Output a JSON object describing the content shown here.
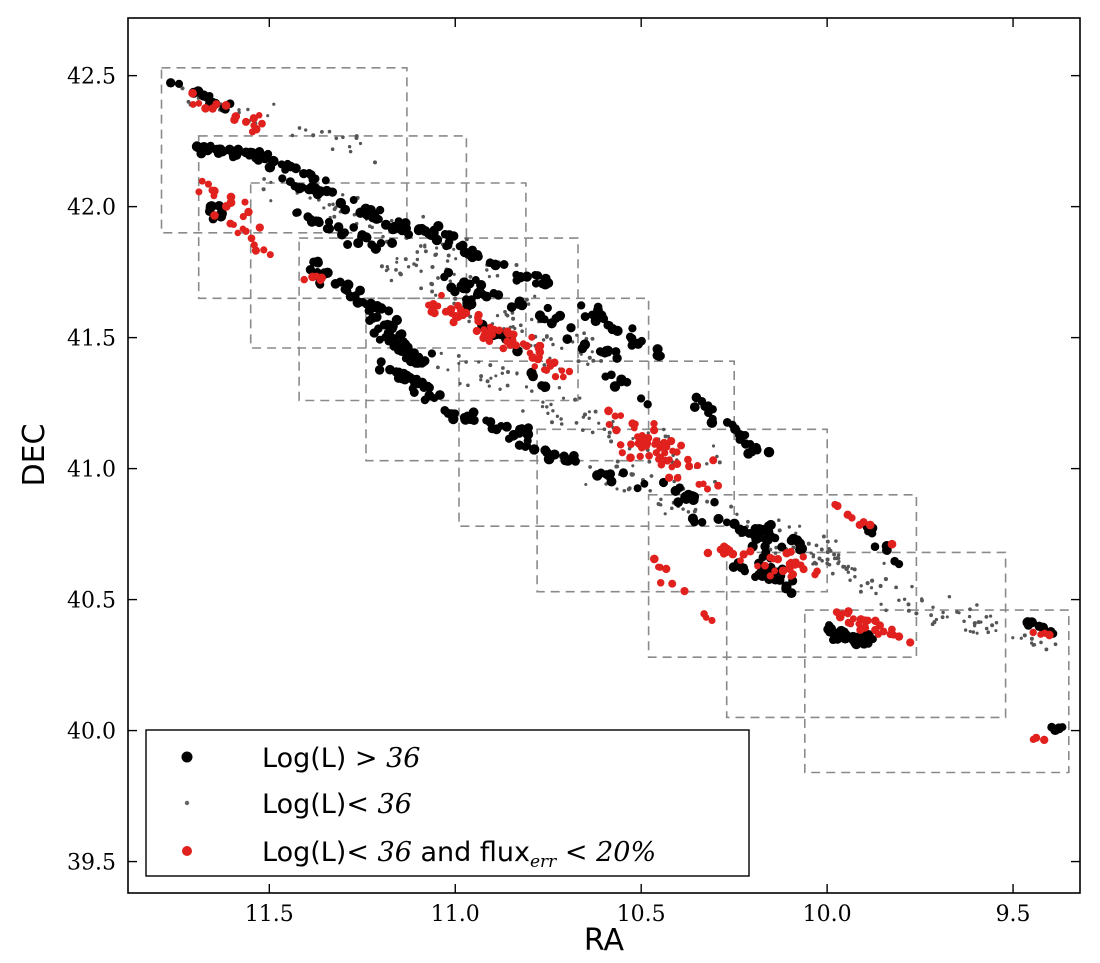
{
  "chart_data": {
    "type": "scatter",
    "xlabel": "RA",
    "ylabel": "DEC",
    "xlim": [
      11.88,
      9.32
    ],
    "ylim": [
      39.38,
      42.72
    ],
    "x_inverted": true,
    "grid": false,
    "x_ticks": [
      11.5,
      11.0,
      10.5,
      10.0,
      9.5
    ],
    "x_tick_labels": [
      "11.5",
      "11.0",
      "10.5",
      "10.0",
      "9.5"
    ],
    "y_ticks": [
      39.5,
      40.0,
      40.5,
      41.0,
      41.5,
      42.0,
      42.5
    ],
    "y_tick_labels": [
      "39.5",
      "40.0",
      "40.5",
      "41.0",
      "41.5",
      "42.0",
      "42.5"
    ],
    "legend_position": "bottom-left",
    "legend": [
      {
        "color": "#000000",
        "marker": "large-dot",
        "prefix": "Log(L)",
        "math": " > 36",
        "suffix": ""
      },
      {
        "color": "#666666",
        "marker": "small-dot",
        "prefix": "Log(L)",
        "math": "< 36",
        "suffix": ""
      },
      {
        "color": "#e0211d",
        "marker": "medium-dot",
        "prefix": "Log(L)",
        "math": "< 36",
        "suffix": " and flux",
        "sub": "err",
        "tail": " < 20%"
      }
    ],
    "fields": [
      {
        "ra_max": 11.79,
        "ra_min": 11.13,
        "dec_min": 41.9,
        "dec_max": 42.53
      },
      {
        "ra_max": 11.69,
        "ra_min": 10.97,
        "dec_min": 41.65,
        "dec_max": 42.27
      },
      {
        "ra_max": 11.55,
        "ra_min": 10.81,
        "dec_min": 41.46,
        "dec_max": 42.09
      },
      {
        "ra_max": 11.42,
        "ra_min": 10.67,
        "dec_min": 41.26,
        "dec_max": 41.88
      },
      {
        "ra_max": 11.24,
        "ra_min": 10.48,
        "dec_min": 41.03,
        "dec_max": 41.65
      },
      {
        "ra_max": 10.99,
        "ra_min": 10.25,
        "dec_min": 40.78,
        "dec_max": 41.41
      },
      {
        "ra_max": 10.78,
        "ra_min": 10.0,
        "dec_min": 40.53,
        "dec_max": 41.15
      },
      {
        "ra_max": 10.48,
        "ra_min": 9.76,
        "dec_min": 40.28,
        "dec_max": 40.9
      },
      {
        "ra_max": 10.27,
        "ra_min": 9.52,
        "dec_min": 40.05,
        "dec_max": 40.68
      },
      {
        "ra_max": 10.06,
        "ra_min": 9.35,
        "dec_min": 39.84,
        "dec_max": 40.46
      }
    ],
    "series": [
      {
        "name": "Log(L) > 36",
        "color": "#000000",
        "marker_size": 4.6,
        "density": 320,
        "segments": [
          {
            "x": [
              11.76,
              11.62
            ],
            "y": [
              42.47,
              42.38
            ],
            "w": 0.25,
            "n": 14
          },
          {
            "x": [
              11.72,
              11.52
            ],
            "y": [
              42.22,
              42.2
            ],
            "w": 0.25,
            "n": 26
          },
          {
            "x": [
              11.55,
              11.36
            ],
            "y": [
              42.2,
              42.1
            ],
            "w": 0.2,
            "n": 22
          },
          {
            "x": [
              11.7,
              11.62
            ],
            "y": [
              42.02,
              41.96
            ],
            "w": 0.3,
            "n": 10
          },
          {
            "x": [
              11.45,
              11.05
            ],
            "y": [
              42.1,
              41.88
            ],
            "w": 0.35,
            "n": 34
          },
          {
            "x": [
              11.17,
              10.98
            ],
            "y": [
              41.92,
              41.9
            ],
            "w": 0.25,
            "n": 18
          },
          {
            "x": [
              11.05,
              10.75
            ],
            "y": [
              41.88,
              41.7
            ],
            "w": 0.3,
            "n": 28
          },
          {
            "x": [
              11.42,
              11.18
            ],
            "y": [
              41.98,
              41.84
            ],
            "w": 0.3,
            "n": 26
          },
          {
            "x": [
              11.05,
              10.65
            ],
            "y": [
              41.75,
              41.52
            ],
            "w": 0.3,
            "n": 26
          },
          {
            "x": [
              10.65,
              10.45
            ],
            "y": [
              41.6,
              41.43
            ],
            "w": 0.25,
            "n": 24
          },
          {
            "x": [
              10.7,
              10.55
            ],
            "y": [
              41.5,
              41.43
            ],
            "w": 0.25,
            "n": 10
          },
          {
            "x": [
              11.38,
              11.18
            ],
            "y": [
              41.78,
              41.57
            ],
            "w": 0.35,
            "n": 36
          },
          {
            "x": [
              11.22,
              11.08
            ],
            "y": [
              41.56,
              41.38
            ],
            "w": 0.35,
            "n": 44
          },
          {
            "x": [
              11.18,
              11.05
            ],
            "y": [
              41.4,
              41.27
            ],
            "w": 0.3,
            "n": 28
          },
          {
            "x": [
              11.0,
              10.75
            ],
            "y": [
              41.7,
              41.3
            ],
            "w": 0.3,
            "n": 20
          },
          {
            "x": [
              11.02,
              10.8
            ],
            "y": [
              41.22,
              41.12
            ],
            "w": 0.3,
            "n": 28
          },
          {
            "x": [
              10.85,
              10.65
            ],
            "y": [
              41.1,
              41.02
            ],
            "w": 0.25,
            "n": 16
          },
          {
            "x": [
              10.6,
              10.3
            ],
            "y": [
              40.98,
              40.88
            ],
            "w": 0.3,
            "n": 20
          },
          {
            "x": [
              10.4,
              10.05
            ],
            "y": [
              40.85,
              40.7
            ],
            "w": 0.35,
            "n": 24
          },
          {
            "x": [
              10.35,
              10.18
            ],
            "y": [
              41.25,
              41.07
            ],
            "w": 0.3,
            "n": 24
          },
          {
            "x": [
              10.18,
              10.12
            ],
            "y": [
              40.78,
              40.52
            ],
            "w": 0.45,
            "n": 24
          },
          {
            "x": [
              10.25,
              10.1
            ],
            "y": [
              40.63,
              40.58
            ],
            "w": 0.3,
            "n": 18
          },
          {
            "x": [
              10.0,
              9.88
            ],
            "y": [
              40.38,
              40.33
            ],
            "w": 0.35,
            "n": 34
          },
          {
            "x": [
              9.9,
              9.78
            ],
            "y": [
              40.78,
              40.6
            ],
            "w": 0.3,
            "n": 10
          },
          {
            "x": [
              10.58,
              10.45
            ],
            "y": [
              41.35,
              41.22
            ],
            "w": 0.25,
            "n": 8
          },
          {
            "x": [
              9.46,
              9.4
            ],
            "y": [
              40.41,
              40.38
            ],
            "w": 0.2,
            "n": 7
          },
          {
            "x": [
              9.42,
              9.37
            ],
            "y": [
              40.02,
              40.01
            ],
            "w": 0.15,
            "n": 5
          }
        ]
      },
      {
        "name": "Log(L)< 36",
        "color": "#555555",
        "marker_size": 1.8,
        "density": 260,
        "segments": [
          {
            "x": [
              11.75,
              11.2
            ],
            "y": [
              42.45,
              42.2
            ],
            "w": 0.6,
            "n": 30
          },
          {
            "x": [
              11.5,
              10.9
            ],
            "y": [
              42.1,
              41.75
            ],
            "w": 0.7,
            "n": 60
          },
          {
            "x": [
              11.2,
              10.6
            ],
            "y": [
              41.8,
              41.4
            ],
            "w": 0.8,
            "n": 80
          },
          {
            "x": [
              11.0,
              10.3
            ],
            "y": [
              41.4,
              41.0
            ],
            "w": 0.8,
            "n": 90
          },
          {
            "x": [
              10.6,
              9.9
            ],
            "y": [
              41.0,
              40.6
            ],
            "w": 0.8,
            "n": 90
          },
          {
            "x": [
              10.1,
              9.55
            ],
            "y": [
              40.7,
              40.35
            ],
            "w": 0.7,
            "n": 60
          },
          {
            "x": [
              9.7,
              9.4
            ],
            "y": [
              40.45,
              40.33
            ],
            "w": 0.5,
            "n": 20
          }
        ]
      },
      {
        "name": "Log(L)< 36 and flux_err < 20%",
        "color": "#e0211d",
        "marker_size": 3.8,
        "density": 280,
        "segments": [
          {
            "x": [
              11.76,
              11.5
            ],
            "y": [
              42.43,
              42.3
            ],
            "w": 0.4,
            "n": 18
          },
          {
            "x": [
              11.68,
              11.5
            ],
            "y": [
              42.12,
              41.85
            ],
            "w": 0.45,
            "n": 20
          },
          {
            "x": [
              11.6,
              11.35
            ],
            "y": [
              41.9,
              41.7
            ],
            "w": 0.35,
            "n": 10
          },
          {
            "x": [
              11.1,
              10.75
            ],
            "y": [
              41.65,
              41.45
            ],
            "w": 0.4,
            "n": 40
          },
          {
            "x": [
              10.95,
              10.7
            ],
            "y": [
              41.55,
              41.35
            ],
            "w": 0.35,
            "n": 30
          },
          {
            "x": [
              10.6,
              10.35
            ],
            "y": [
              41.2,
              41.0
            ],
            "w": 0.45,
            "n": 40
          },
          {
            "x": [
              10.55,
              10.3
            ],
            "y": [
              41.1,
              40.9
            ],
            "w": 0.4,
            "n": 20
          },
          {
            "x": [
              10.3,
              10.1
            ],
            "y": [
              40.7,
              40.6
            ],
            "w": 0.45,
            "n": 26
          },
          {
            "x": [
              10.15,
              10.0
            ],
            "y": [
              40.7,
              40.55
            ],
            "w": 0.35,
            "n": 12
          },
          {
            "x": [
              10.0,
              9.78
            ],
            "y": [
              40.45,
              40.35
            ],
            "w": 0.4,
            "n": 26
          },
          {
            "x": [
              9.98,
              9.8
            ],
            "y": [
              40.85,
              40.7
            ],
            "w": 0.3,
            "n": 8
          },
          {
            "x": [
              10.5,
              10.3
            ],
            "y": [
              40.7,
              40.4
            ],
            "w": 0.35,
            "n": 10
          },
          {
            "x": [
              9.45,
              9.4
            ],
            "y": [
              40.38,
              40.36
            ],
            "w": 0.25,
            "n": 4
          },
          {
            "x": [
              9.45,
              9.42
            ],
            "y": [
              39.98,
              39.97
            ],
            "w": 0.2,
            "n": 3
          }
        ]
      }
    ]
  }
}
